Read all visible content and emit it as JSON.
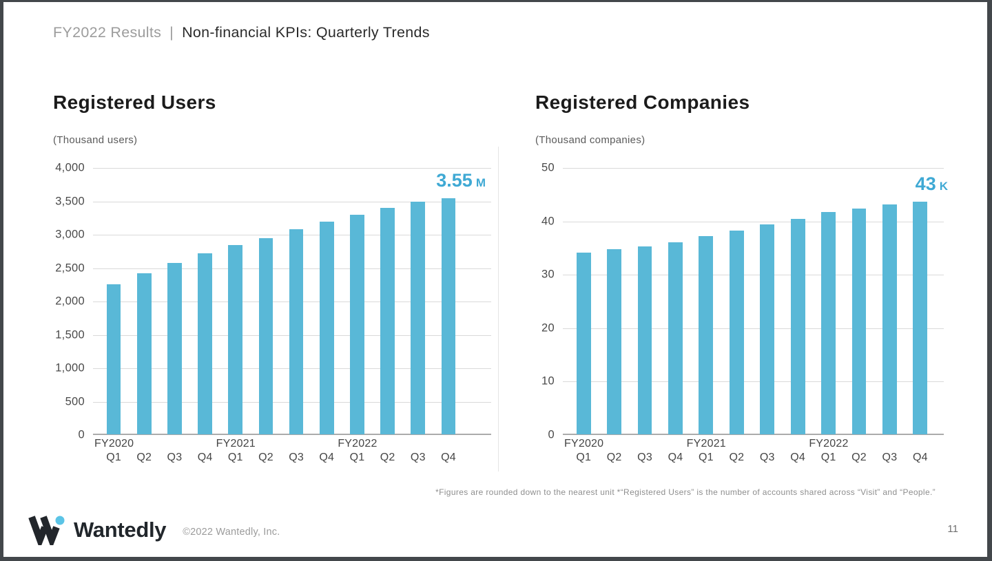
{
  "header": {
    "section": "FY2022 Results",
    "separator": "|",
    "title": "Non-financial KPIs: Quarterly Trends"
  },
  "chart_data": [
    {
      "type": "bar",
      "title": "Registered Users",
      "unit_label": "(Thousand users)",
      "quarters": [
        "Q1",
        "Q2",
        "Q3",
        "Q4",
        "Q1",
        "Q2",
        "Q3",
        "Q4",
        "Q1",
        "Q2",
        "Q3",
        "Q4"
      ],
      "year_labels": [
        {
          "label": "FY2020",
          "slot": 0
        },
        {
          "label": "FY2021",
          "slot": 4
        },
        {
          "label": "FY2022",
          "slot": 8
        }
      ],
      "values": [
        2250,
        2420,
        2570,
        2720,
        2840,
        2950,
        3080,
        3190,
        3300,
        3400,
        3490,
        3550
      ],
      "ylim": [
        0,
        4000
      ],
      "yticks": [
        0,
        500,
        1000,
        1500,
        2000,
        2500,
        3000,
        3500,
        4000
      ],
      "grid": true,
      "annotation": {
        "value": "3.55",
        "suffix": "M"
      }
    },
    {
      "type": "bar",
      "title": "Registered Companies",
      "unit_label": "(Thousand companies)",
      "quarters": [
        "Q1",
        "Q2",
        "Q3",
        "Q4",
        "Q1",
        "Q2",
        "Q3",
        "Q4",
        "Q1",
        "Q2",
        "Q3",
        "Q4"
      ],
      "year_labels": [
        {
          "label": "FY2020",
          "slot": 0
        },
        {
          "label": "FY2021",
          "slot": 4
        },
        {
          "label": "FY2022",
          "slot": 8
        }
      ],
      "values": [
        34.1,
        34.7,
        35.3,
        36.0,
        37.2,
        38.2,
        39.4,
        40.5,
        41.7,
        42.4,
        43.2,
        43.7
      ],
      "ylim": [
        0,
        50
      ],
      "yticks": [
        0,
        10,
        20,
        30,
        40,
        50
      ],
      "grid": true,
      "annotation": {
        "value": "43",
        "suffix": "K"
      }
    }
  ],
  "footnote": "*Figures are rounded down to the nearest unit *“Registered Users” is the number of accounts shared across “Visit” and “People.”",
  "footer": {
    "brand": "Wantedly",
    "copyright": "©2022 Wantedly, Inc.",
    "page_number": "11"
  },
  "colors": {
    "bar": "#59B8D7",
    "accent_text": "#3FA9D4",
    "gridline": "#D9D9D9",
    "baseline": "#ABABAB",
    "divider": "#E4E4E4",
    "frame": "#43474B",
    "logo_dot": "#5BC4E6",
    "logo_mark": "#22262B"
  }
}
